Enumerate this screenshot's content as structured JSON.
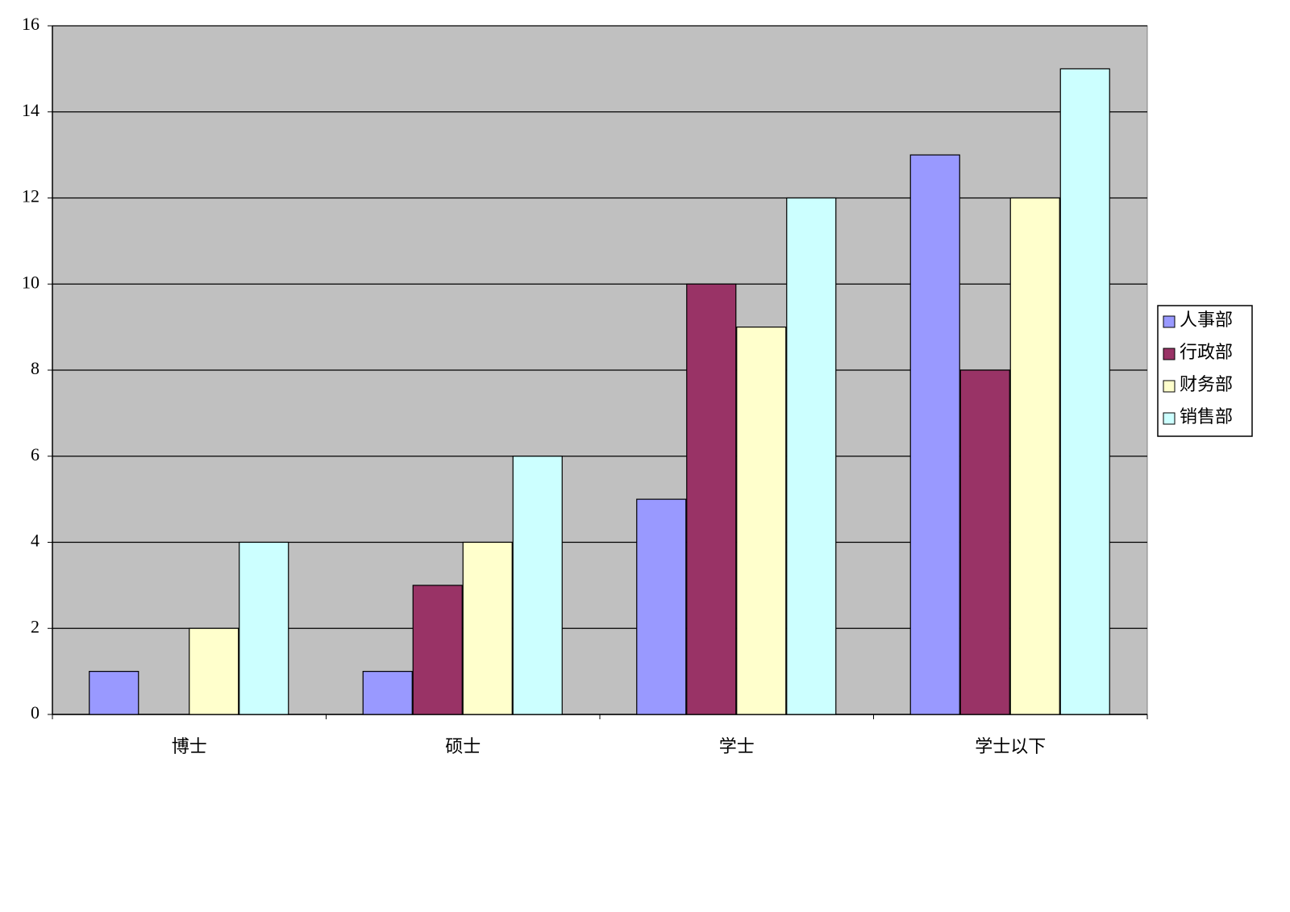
{
  "chart_data": {
    "type": "bar",
    "categories": [
      "博士",
      "硕士",
      "学士",
      "学士以下"
    ],
    "series": [
      {
        "name": "人事部",
        "color": "#9999ff",
        "values": [
          1,
          1,
          5,
          13
        ]
      },
      {
        "name": "行政部",
        "color": "#993366",
        "values": [
          0,
          3,
          10,
          8
        ]
      },
      {
        "name": "财务部",
        "color": "#ffffcc",
        "values": [
          2,
          4,
          9,
          12
        ]
      },
      {
        "name": "销售部",
        "color": "#ccffff",
        "values": [
          4,
          6,
          12,
          15
        ]
      }
    ],
    "ylim": [
      0,
      16
    ],
    "yticks": [
      0,
      2,
      4,
      6,
      8,
      10,
      12,
      14,
      16
    ],
    "grid": true,
    "plot_background": "#c0c0c0",
    "legend": "right"
  }
}
